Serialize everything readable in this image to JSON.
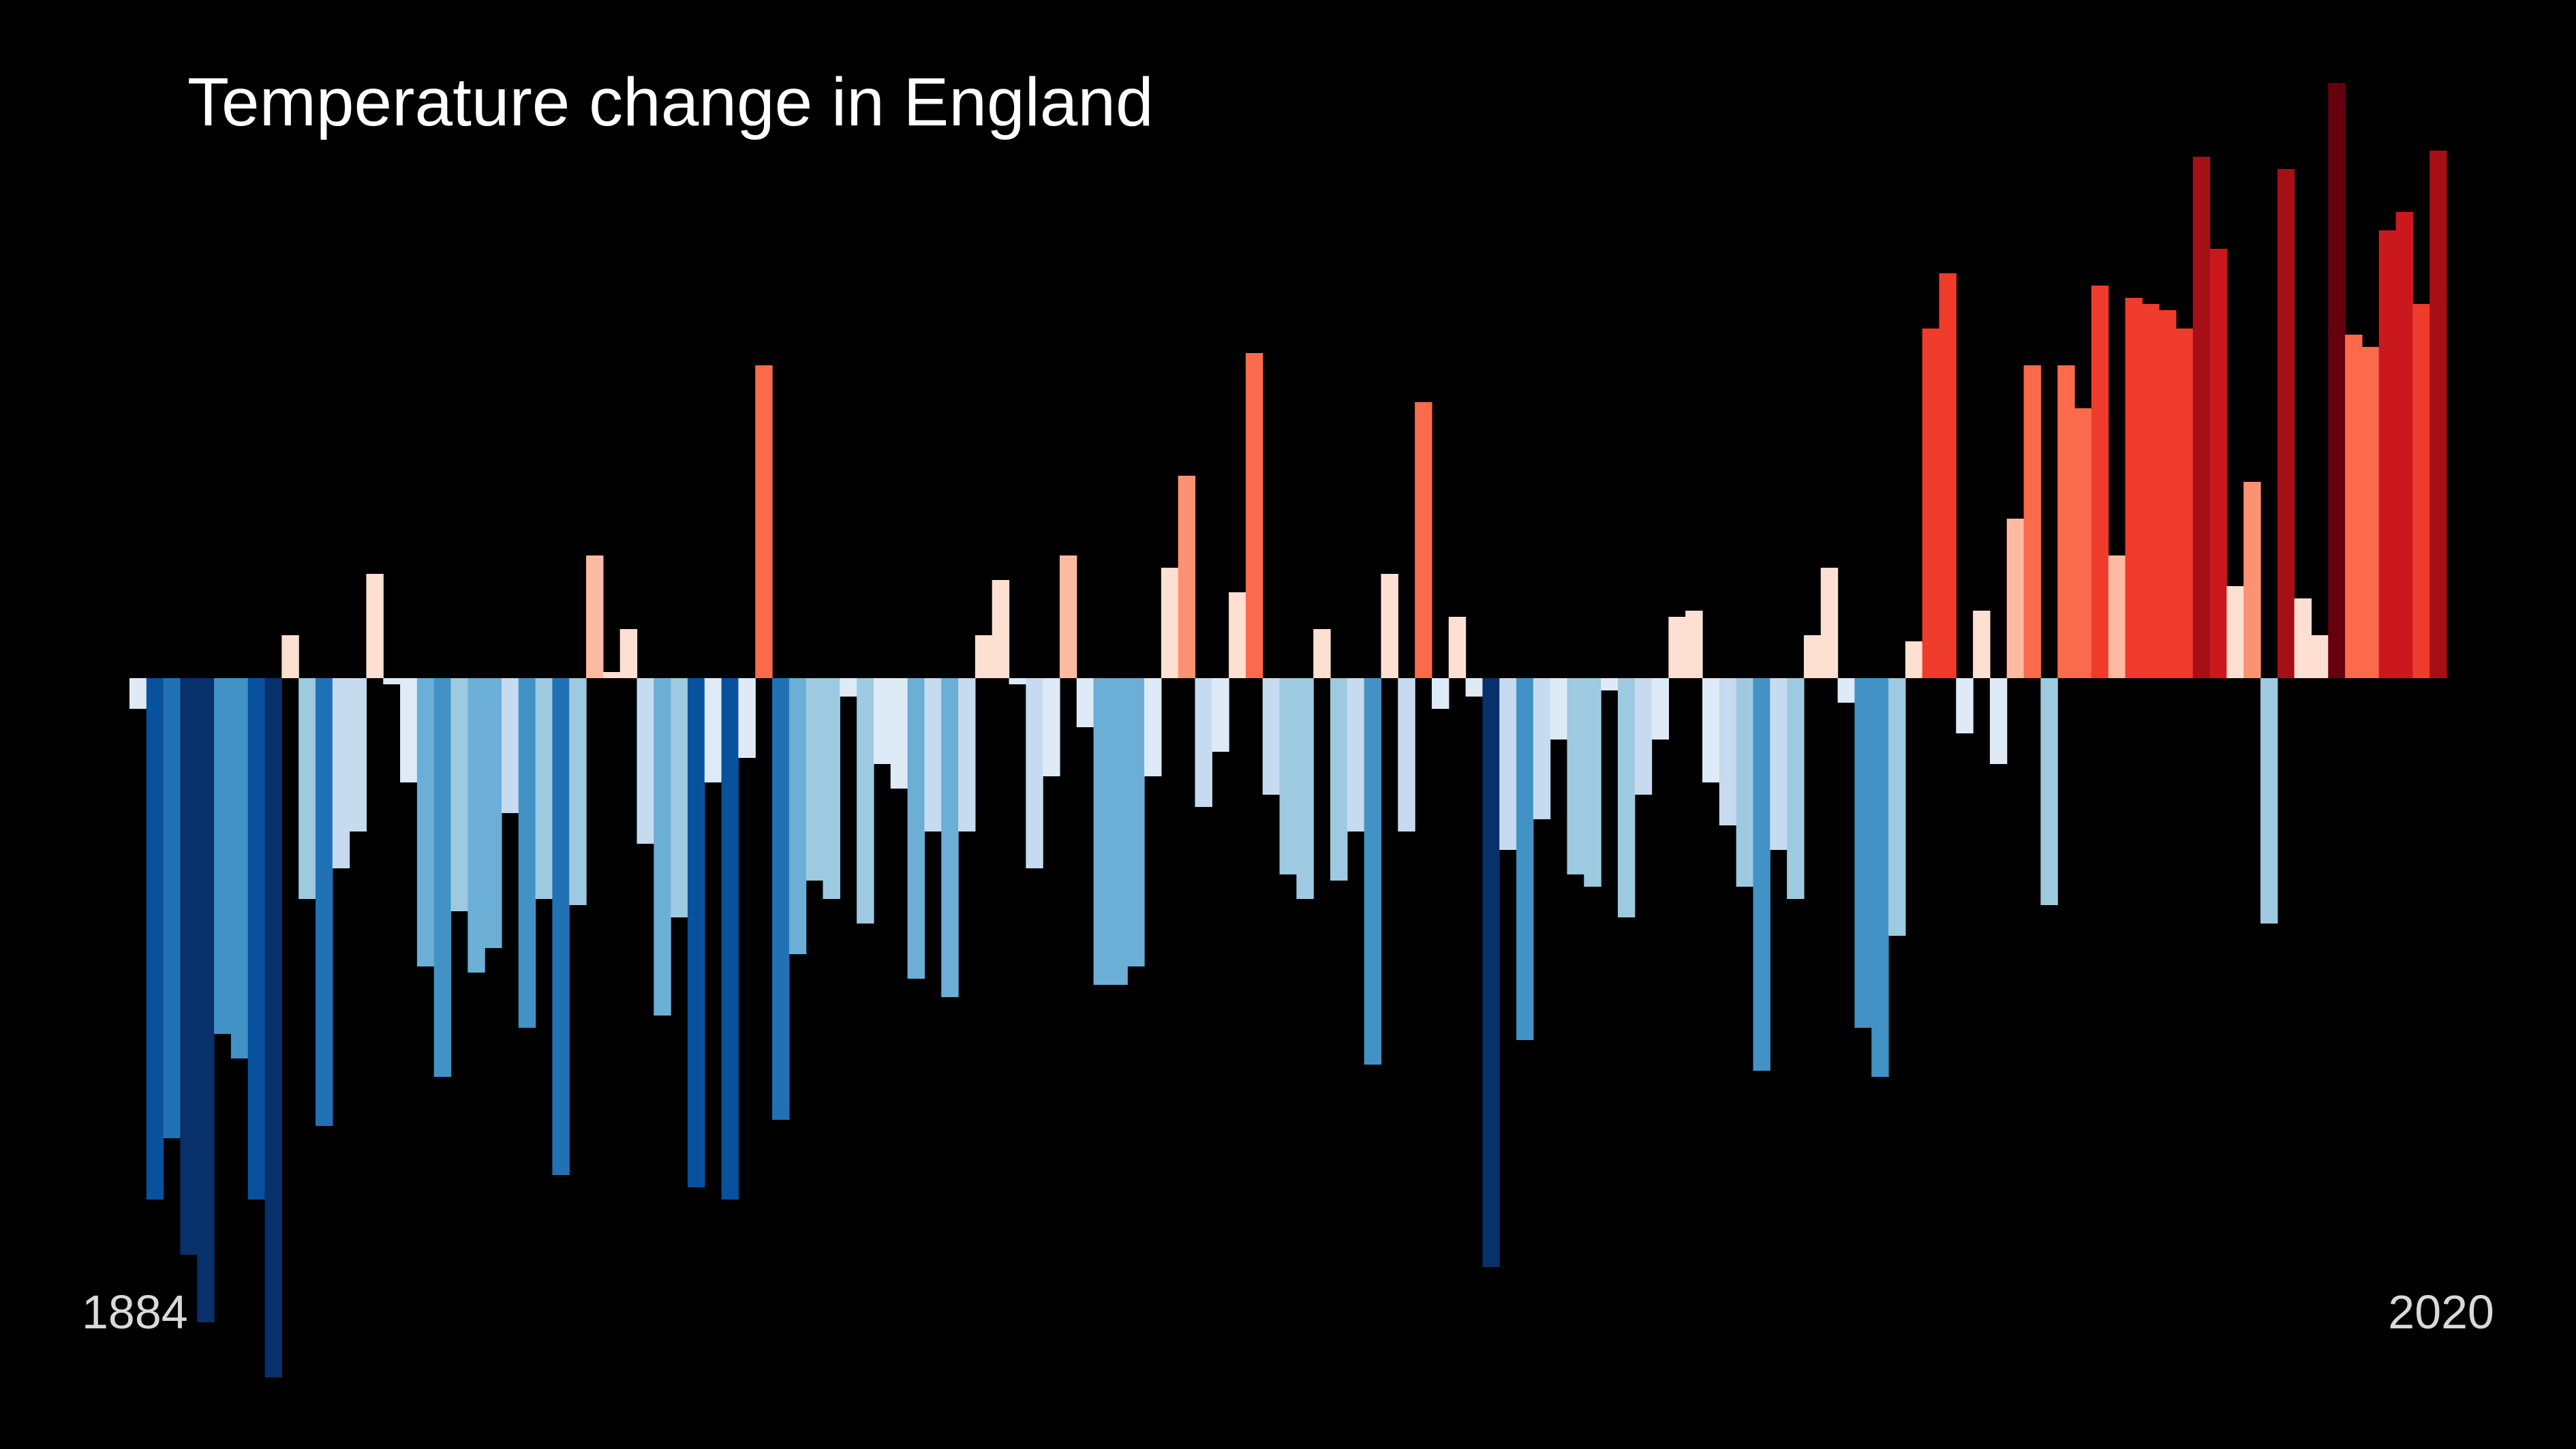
{
  "chart_data": {
    "type": "bar",
    "title": "Temperature change in England",
    "x_start_label": "1884",
    "x_end_label": "2020",
    "x": [
      1884,
      1885,
      1886,
      1887,
      1888,
      1889,
      1890,
      1891,
      1892,
      1893,
      1894,
      1895,
      1896,
      1897,
      1898,
      1899,
      1900,
      1901,
      1902,
      1903,
      1904,
      1905,
      1906,
      1907,
      1908,
      1909,
      1910,
      1911,
      1912,
      1913,
      1914,
      1915,
      1916,
      1917,
      1918,
      1919,
      1920,
      1921,
      1922,
      1923,
      1924,
      1925,
      1926,
      1927,
      1928,
      1929,
      1930,
      1931,
      1932,
      1933,
      1934,
      1935,
      1936,
      1937,
      1938,
      1939,
      1940,
      1941,
      1942,
      1943,
      1944,
      1945,
      1946,
      1947,
      1948,
      1949,
      1950,
      1951,
      1952,
      1953,
      1954,
      1955,
      1956,
      1957,
      1958,
      1959,
      1960,
      1961,
      1962,
      1963,
      1964,
      1965,
      1966,
      1967,
      1968,
      1969,
      1970,
      1971,
      1972,
      1973,
      1974,
      1975,
      1976,
      1977,
      1978,
      1979,
      1980,
      1981,
      1982,
      1983,
      1984,
      1985,
      1986,
      1987,
      1988,
      1989,
      1990,
      1991,
      1992,
      1993,
      1994,
      1995,
      1996,
      1997,
      1998,
      1999,
      2000,
      2001,
      2002,
      2003,
      2004,
      2005,
      2006,
      2007,
      2008,
      2009,
      2010,
      2011,
      2012,
      2013,
      2014,
      2015,
      2016,
      2017,
      2018,
      2019,
      2020
    ],
    "values": [
      -0.05,
      -0.85,
      -0.75,
      -0.94,
      -1.05,
      -0.58,
      -0.62,
      -0.85,
      -1.14,
      0.07,
      -0.36,
      -0.73,
      -0.31,
      -0.25,
      0.17,
      -0.01,
      -0.17,
      -0.47,
      -0.65,
      -0.38,
      -0.48,
      -0.44,
      -0.22,
      -0.57,
      -0.36,
      -0.81,
      -0.37,
      0.2,
      0.01,
      0.08,
      -0.27,
      -0.55,
      -0.39,
      -0.83,
      -0.17,
      -0.85,
      -0.13,
      0.51,
      -0.72,
      -0.45,
      -0.33,
      -0.36,
      -0.03,
      -0.4,
      -0.14,
      -0.18,
      -0.49,
      -0.25,
      -0.52,
      -0.25,
      0.07,
      0.16,
      -0.01,
      -0.31,
      -0.16,
      0.2,
      -0.08,
      -0.5,
      -0.5,
      -0.47,
      -0.16,
      0.18,
      0.33,
      -0.21,
      -0.12,
      0.14,
      0.53,
      -0.19,
      -0.32,
      -0.36,
      0.08,
      -0.33,
      -0.25,
      -0.63,
      0.17,
      -0.25,
      0.45,
      -0.05,
      0.1,
      -0.03,
      -0.96,
      -0.28,
      -0.59,
      -0.23,
      -0.1,
      -0.32,
      -0.34,
      -0.02,
      -0.39,
      -0.19,
      -0.1,
      0.1,
      0.11,
      -0.17,
      -0.24,
      -0.34,
      -0.64,
      -0.28,
      -0.36,
      0.07,
      0.18,
      -0.04,
      -0.57,
      -0.65,
      -0.42,
      0.06,
      0.57,
      0.66,
      -0.09,
      0.11,
      -0.14,
      0.26,
      0.51,
      -0.37,
      0.51,
      0.44,
      0.64,
      0.2,
      0.62,
      0.61,
      0.6,
      0.57,
      0.85,
      0.7,
      0.15,
      0.32,
      -0.4,
      0.83,
      0.13,
      0.07,
      0.97,
      0.56,
      0.54,
      0.73,
      0.76,
      0.61,
      0.86
    ]
  }
}
